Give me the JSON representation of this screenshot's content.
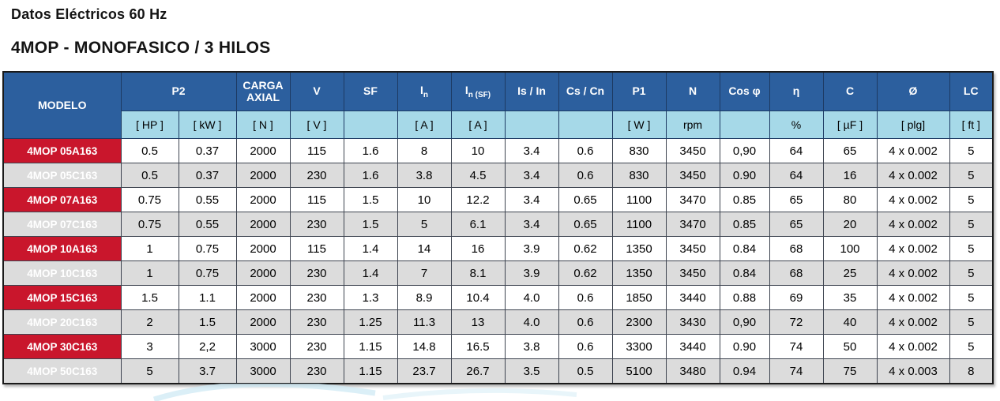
{
  "page": {
    "title": "Datos Eléctricos 60 Hz",
    "subtitle": "4MOP - MONOFASICO / 3 HILOS"
  },
  "table": {
    "header": {
      "modelo": "MODELO",
      "p2": "P2",
      "carga_axial": "CARGA AXIAL",
      "v": "V",
      "sf": "SF",
      "in_base": "I",
      "in_sub": "n",
      "insf_base": "I",
      "insf_sub": "n (SF)",
      "is_in": "Is / In",
      "cs_cn": "Cs / Cn",
      "p1": "P1",
      "n": "N",
      "cos_phi": "Cos φ",
      "eta": "η",
      "c": "C",
      "diameter": "Ø",
      "lc": "LC"
    },
    "units": [
      "[ HP ]",
      "[ kW ]",
      "[ N ]",
      "[ V ]",
      "",
      "[ A ]",
      "[ A ]",
      "",
      "",
      "[ W ]",
      "rpm",
      "",
      "%",
      "[ µF ]",
      "[ plg]",
      "[ ft ]"
    ],
    "rows": [
      [
        "4MOP 05A163",
        "0.5",
        "0.37",
        "2000",
        "115",
        "1.6",
        "8",
        "10",
        "3.4",
        "0.6",
        "830",
        "3450",
        "0,90",
        "64",
        "65",
        "4 x 0.002",
        "5"
      ],
      [
        "4MOP 05C163",
        "0.5",
        "0.37",
        "2000",
        "230",
        "1.6",
        "3.8",
        "4.5",
        "3.4",
        "0.6",
        "830",
        "3450",
        "0.90",
        "64",
        "16",
        "4 x 0.002",
        "5"
      ],
      [
        "4MOP 07A163",
        "0.75",
        "0.55",
        "2000",
        "115",
        "1.5",
        "10",
        "12.2",
        "3.4",
        "0.65",
        "1100",
        "3470",
        "0.85",
        "65",
        "80",
        "4 x 0.002",
        "5"
      ],
      [
        "4MOP 07C163",
        "0.75",
        "0.55",
        "2000",
        "230",
        "1.5",
        "5",
        "6.1",
        "3.4",
        "0.65",
        "1100",
        "3470",
        "0.85",
        "65",
        "20",
        "4 x 0.002",
        "5"
      ],
      [
        "4MOP 10A163",
        "1",
        "0.75",
        "2000",
        "115",
        "1.4",
        "14",
        "16",
        "3.9",
        "0.62",
        "1350",
        "3450",
        "0.84",
        "68",
        "100",
        "4 x 0.002",
        "5"
      ],
      [
        "4MOP 10C163",
        "1",
        "0.75",
        "2000",
        "230",
        "1.4",
        "7",
        "8.1",
        "3.9",
        "0.62",
        "1350",
        "3450",
        "0.84",
        "68",
        "25",
        "4 x 0.002",
        "5"
      ],
      [
        "4MOP 15C163",
        "1.5",
        "1.1",
        "2000",
        "230",
        "1.3",
        "8.9",
        "10.4",
        "4.0",
        "0.6",
        "1850",
        "3440",
        "0.88",
        "69",
        "35",
        "4 x 0.002",
        "5"
      ],
      [
        "4MOP 20C163",
        "2",
        "1.5",
        "2000",
        "230",
        "1.25",
        "11.3",
        "13",
        "4.0",
        "0.6",
        "2300",
        "3430",
        "0,90",
        "72",
        "40",
        "4 x 0.002",
        "5"
      ],
      [
        "4MOP 30C163",
        "3",
        "2,2",
        "3000",
        "230",
        "1.15",
        "14.8",
        "16.5",
        "3.8",
        "0.6",
        "3300",
        "3440",
        "0.90",
        "74",
        "50",
        "4 x 0.002",
        "5"
      ],
      [
        "4MOP 50C163",
        "5",
        "3.7",
        "3000",
        "230",
        "1.15",
        "23.7",
        "26.7",
        "3.5",
        "0.5",
        "5100",
        "3480",
        "0.94",
        "74",
        "75",
        "4 x 0.003",
        "8"
      ]
    ],
    "colors": {
      "header_blue": "#2c5f9e",
      "unit_light_blue": "#a6d9e8",
      "model_red": "#c9162c",
      "row_gray": "#dcdcdc"
    }
  }
}
